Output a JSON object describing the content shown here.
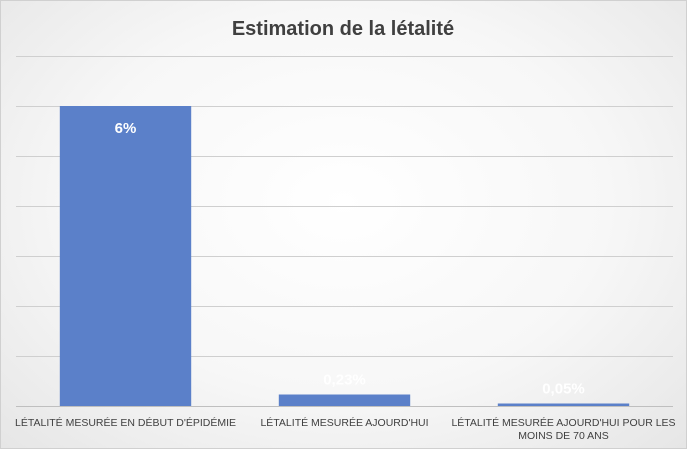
{
  "chart_data": {
    "type": "bar",
    "title": "Estimation de la létalité",
    "categories": [
      [
        "LÉTALITÉ MESURÉE EN DÉBUT D'ÉPIDÉMIE"
      ],
      [
        "LÉTALITÉ MESURÉE AJOURD'HUI"
      ],
      [
        "LÉTALITÉ MESURÉE AJOURD'HUI POUR LES",
        "MOINS DE 70 ANS"
      ]
    ],
    "values": [
      6,
      0.23,
      0.05
    ],
    "data_labels": [
      "6%",
      "0,23%",
      "0,05%"
    ],
    "unit": "%",
    "ylim": [
      0,
      7
    ],
    "grid": true,
    "legend": "none",
    "colors": {
      "bar": "#5b80c9",
      "gridline": "#cfcfcf",
      "axis": "#bfbfbf"
    }
  }
}
